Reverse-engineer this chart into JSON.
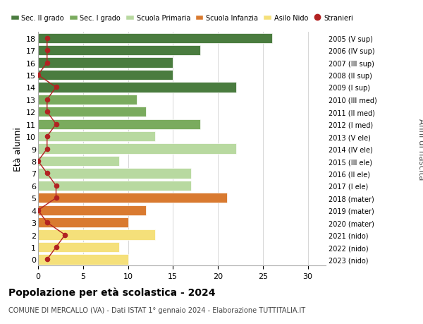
{
  "ages": [
    18,
    17,
    16,
    15,
    14,
    13,
    12,
    11,
    10,
    9,
    8,
    7,
    6,
    5,
    4,
    3,
    2,
    1,
    0
  ],
  "right_labels": [
    "2005 (V sup)",
    "2006 (IV sup)",
    "2007 (III sup)",
    "2008 (II sup)",
    "2009 (I sup)",
    "2010 (III med)",
    "2011 (II med)",
    "2012 (I med)",
    "2013 (V ele)",
    "2014 (IV ele)",
    "2015 (III ele)",
    "2016 (II ele)",
    "2017 (I ele)",
    "2018 (mater)",
    "2019 (mater)",
    "2020 (mater)",
    "2021 (nido)",
    "2022 (nido)",
    "2023 (nido)"
  ],
  "bar_values": [
    26,
    18,
    15,
    15,
    22,
    11,
    12,
    18,
    13,
    22,
    9,
    17,
    17,
    21,
    12,
    10,
    13,
    9,
    10
  ],
  "stranieri_values": [
    1,
    1,
    1,
    0,
    2,
    1,
    1,
    2,
    1,
    1,
    0,
    1,
    2,
    2,
    0,
    1,
    3,
    2,
    1
  ],
  "bar_colors": [
    "#4a7c3f",
    "#4a7c3f",
    "#4a7c3f",
    "#4a7c3f",
    "#4a7c3f",
    "#7aab5e",
    "#7aab5e",
    "#7aab5e",
    "#b8d9a0",
    "#b8d9a0",
    "#b8d9a0",
    "#b8d9a0",
    "#b8d9a0",
    "#d97a30",
    "#d97a30",
    "#d97a30",
    "#f5e07a",
    "#f5e07a",
    "#f5e07a"
  ],
  "legend_labels": [
    "Sec. II grado",
    "Sec. I grado",
    "Scuola Primaria",
    "Scuola Infanzia",
    "Asilo Nido",
    "Stranieri"
  ],
  "legend_colors": [
    "#4a7c3f",
    "#7aab5e",
    "#b8d9a0",
    "#d97a30",
    "#f5e07a",
    "#b22222"
  ],
  "title": "Popolazione per età scolastica - 2024",
  "subtitle": "COMUNE DI MERCALLO (VA) - Dati ISTAT 1° gennaio 2024 - Elaborazione TUTTITALIA.IT",
  "right_ylabel": "Anni di nascita",
  "ylabel": "Età alunni",
  "xlim": [
    0,
    32
  ],
  "xticks": [
    0,
    5,
    10,
    15,
    20,
    25,
    30
  ],
  "background_color": "#ffffff",
  "grid_color": "#d0d0d0"
}
